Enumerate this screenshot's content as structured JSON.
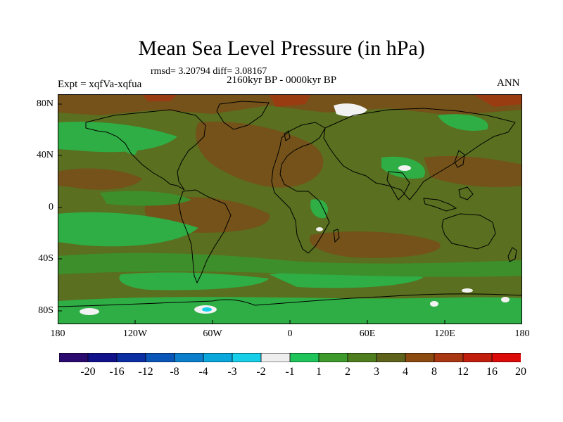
{
  "title": "Mean Sea Level Pressure (in hPa)",
  "stats": "rmsd= 3.20794 diff= 3.08167",
  "period": "2160kyr BP - 0000kyr BP",
  "experiment": "Expt = xqfVa-xqfua",
  "season": "ANN",
  "lat_labels": [
    "80N",
    "40N",
    "0",
    "40S",
    "80S"
  ],
  "lon_labels": [
    "180",
    "120W",
    "60W",
    "0",
    "60E",
    "120E",
    "180"
  ],
  "colorbar": {
    "colors": [
      "#2a0a6e",
      "#12118c",
      "#0b2fa3",
      "#0a55b8",
      "#0b7fcb",
      "#0aa7dc",
      "#17cfe8",
      "#eeeeee",
      "#1fc45a",
      "#3e9a2c",
      "#4f7e1f",
      "#5e621b",
      "#8a4a10",
      "#a93712",
      "#c21e0e",
      "#dd0a0a"
    ],
    "labels": [
      "-20",
      "-16",
      "-12",
      "-8",
      "-4",
      "-3",
      "-2",
      "-1",
      "1",
      "2",
      "3",
      "4",
      "8",
      "12",
      "16",
      "20"
    ]
  },
  "map_palette": {
    "background": "#5a6f1f",
    "bright_green": "#2bc04e",
    "mid_green": "#3f9a2e",
    "brown": "#7a4e12",
    "red": "#a3380f",
    "white": "#f2f2f2",
    "cyan": "#17cfe8"
  }
}
